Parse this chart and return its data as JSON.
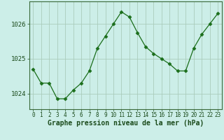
{
  "x": [
    0,
    1,
    2,
    3,
    4,
    5,
    6,
    7,
    8,
    9,
    10,
    11,
    12,
    13,
    14,
    15,
    16,
    17,
    18,
    19,
    20,
    21,
    22,
    23
  ],
  "y": [
    1024.7,
    1024.3,
    1024.3,
    1023.85,
    1023.85,
    1024.1,
    1024.3,
    1024.65,
    1025.3,
    1025.65,
    1026.0,
    1026.35,
    1026.2,
    1025.75,
    1025.35,
    1025.15,
    1025.0,
    1024.85,
    1024.65,
    1024.65,
    1025.3,
    1025.7,
    1026.0,
    1026.3
  ],
  "line_color": "#1a6e1a",
  "marker": "D",
  "marker_size": 2.5,
  "background_color": "#cceee8",
  "grid_color": "#aaccbb",
  "xlabel": "Graphe pression niveau de la mer (hPa)",
  "xlabel_fontsize": 7.0,
  "ytick_labels": [
    "1024",
    "1025",
    "1026"
  ],
  "ytick_values": [
    1024,
    1025,
    1026
  ],
  "ylim": [
    1023.55,
    1026.65
  ],
  "xlim": [
    -0.5,
    23.5
  ],
  "xtick_fontsize": 5.5,
  "ytick_fontsize": 6.5
}
